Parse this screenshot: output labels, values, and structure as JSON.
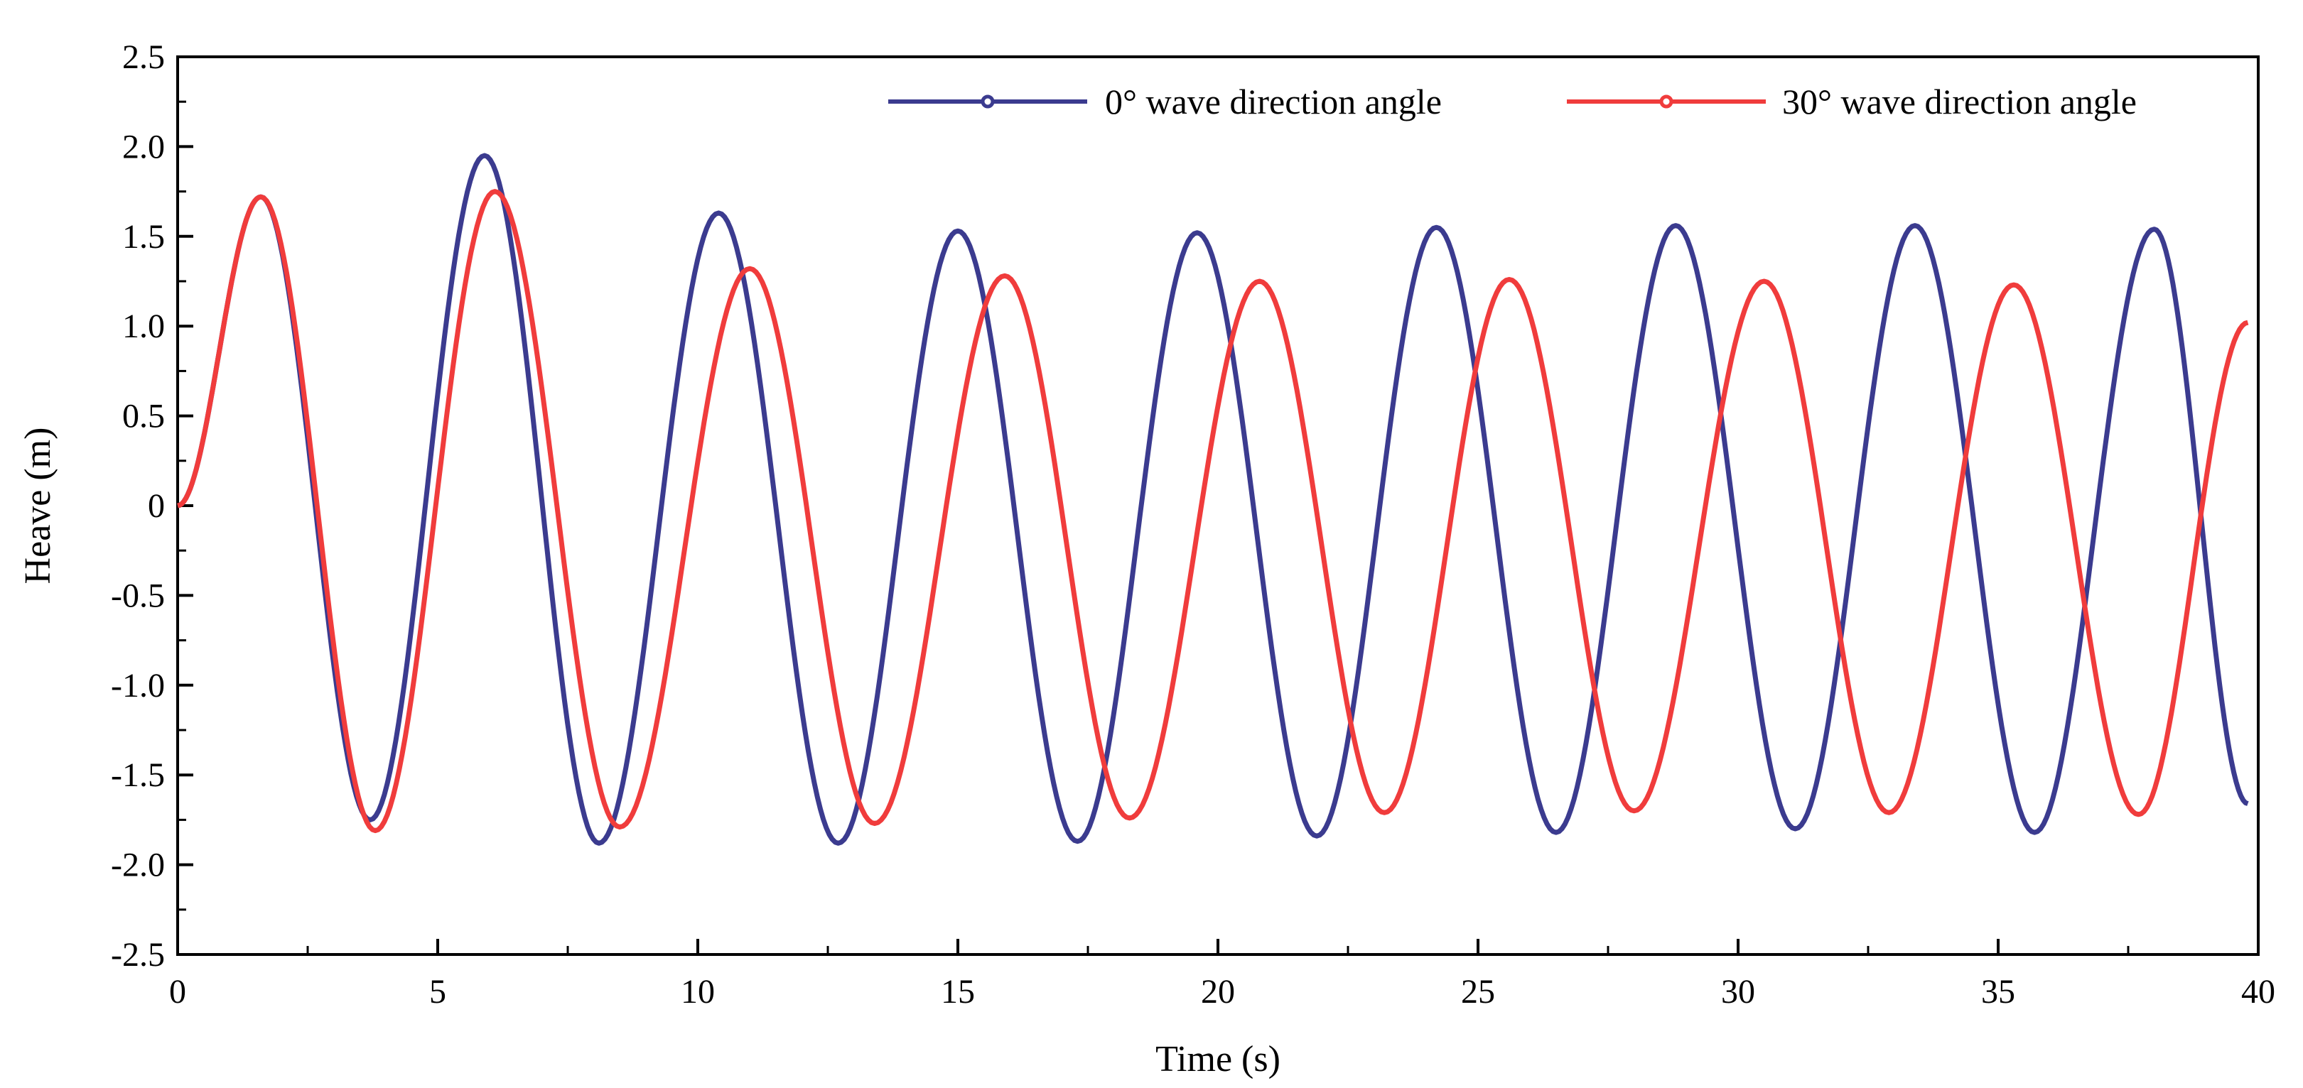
{
  "chart_data": {
    "type": "line",
    "title": "",
    "xlabel": "Time (s)",
    "ylabel": "Heave (m)",
    "xlim": [
      0,
      40
    ],
    "ylim": [
      -2.5,
      2.5
    ],
    "grid": false,
    "legend_position": "top-right",
    "x_ticks": [
      0,
      5,
      10,
      15,
      20,
      25,
      30,
      35,
      40
    ],
    "x_tick_labels": [
      "0",
      "5",
      "10",
      "15",
      "20",
      "25",
      "30",
      "35",
      "40"
    ],
    "y_ticks": [
      2.5,
      2.0,
      1.5,
      1.0,
      0.5,
      0,
      -0.5,
      -1.0,
      -1.5,
      -2.0,
      -2.5
    ],
    "y_tick_labels": [
      "2.5",
      "2.0",
      "1.5",
      "1.0",
      "0.5",
      "0",
      "-0.5",
      "-1.0",
      "-1.5",
      "-2.0",
      "-2.5"
    ],
    "series": [
      {
        "name": "0° wave direction angle",
        "color": "#3b3b8f",
        "x": [
          0,
          1.6,
          3.7,
          5.9,
          8.1,
          10.4,
          12.7,
          15.0,
          17.3,
          19.6,
          21.9,
          24.2,
          26.5,
          28.8,
          31.1,
          33.4,
          35.7,
          38.0,
          39.8
        ],
        "values": [
          0,
          1.72,
          -1.75,
          1.95,
          -1.88,
          1.63,
          -1.88,
          1.53,
          -1.87,
          1.52,
          -1.84,
          1.55,
          -1.82,
          1.56,
          -1.8,
          1.56,
          -1.82,
          1.54,
          -1.66
        ]
      },
      {
        "name": "30° wave direction angle",
        "color": "#f03c3c",
        "x": [
          0,
          1.6,
          3.8,
          6.1,
          8.5,
          11.0,
          13.4,
          15.9,
          18.3,
          20.8,
          23.2,
          25.6,
          28.0,
          30.5,
          32.9,
          35.3,
          37.7,
          39.8
        ],
        "values": [
          0,
          1.72,
          -1.81,
          1.75,
          -1.79,
          1.32,
          -1.77,
          1.28,
          -1.74,
          1.25,
          -1.71,
          1.26,
          -1.7,
          1.25,
          -1.71,
          1.23,
          -1.72,
          1.02
        ]
      }
    ]
  }
}
